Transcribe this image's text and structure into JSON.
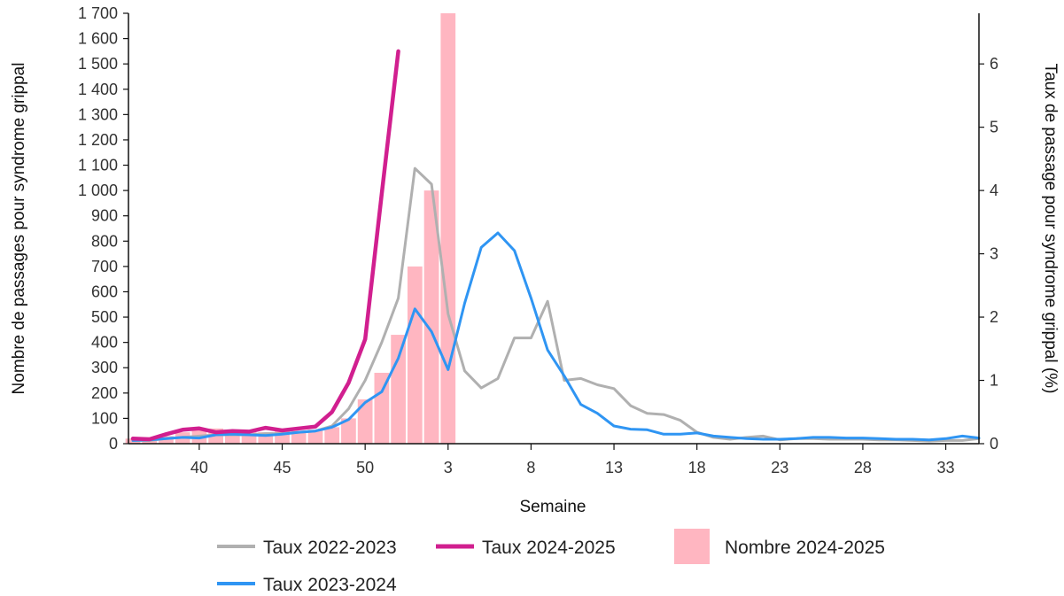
{
  "chart_data": {
    "type": "bar+line",
    "x": {
      "label": "Semaine",
      "weeks": [
        36,
        37,
        38,
        39,
        40,
        41,
        42,
        43,
        44,
        45,
        46,
        47,
        48,
        49,
        50,
        51,
        52,
        1,
        2,
        3,
        4,
        5,
        6,
        7,
        8,
        9,
        10,
        11,
        12,
        13,
        14,
        15,
        16,
        17,
        18,
        19,
        20,
        21,
        22,
        23,
        24,
        25,
        26,
        27,
        28,
        29,
        30,
        31,
        32,
        33,
        34,
        35
      ],
      "tick_labels": [
        "40",
        "45",
        "50",
        "3",
        "8",
        "13",
        "18",
        "23",
        "28",
        "33"
      ]
    },
    "y_left": {
      "label": "Nombre de passages pour syndrome grippal",
      "range": [
        0,
        1700
      ],
      "tick_labels": [
        "0",
        "100",
        "200",
        "300",
        "400",
        "500",
        "600",
        "700",
        "800",
        "900",
        "1 000",
        "1 100",
        "1 200",
        "1 300",
        "1 400",
        "1 500",
        "1 600",
        "1 700"
      ]
    },
    "y_right": {
      "label": "Taux de passage pour syndrome grippal (%)",
      "range": [
        0,
        6.8
      ],
      "tick_labels": [
        "0",
        "1",
        "2",
        "3",
        "4",
        "5",
        "6"
      ]
    },
    "bars": {
      "name": "Nombre 2024-2025",
      "axis": "left",
      "color": "#ffb6c1",
      "values": [
        20,
        25,
        30,
        45,
        55,
        60,
        45,
        50,
        45,
        55,
        50,
        55,
        65,
        100,
        175,
        280,
        430,
        700,
        1000,
        1700
      ]
    },
    "series": [
      {
        "name": "Taux 2022-2023",
        "axis": "right",
        "color": "#b0b0b0",
        "values": [
          0.05,
          0.05,
          0.08,
          0.1,
          0.12,
          0.14,
          0.14,
          0.14,
          0.16,
          0.16,
          0.18,
          0.2,
          0.28,
          0.55,
          1.0,
          1.6,
          2.3,
          4.35,
          4.1,
          2.05,
          1.15,
          0.88,
          1.03,
          1.67,
          1.67,
          2.25,
          1.0,
          1.03,
          0.93,
          0.87,
          0.6,
          0.48,
          0.46,
          0.37,
          0.18,
          0.1,
          0.07,
          0.1,
          0.12,
          0.06,
          0.08,
          0.08,
          0.07,
          0.07,
          0.07,
          0.06,
          0.06,
          0.05,
          0.04,
          0.05,
          0.05,
          0.08
        ]
      },
      {
        "name": "Taux 2023-2024",
        "axis": "right",
        "color": "#2f95f3",
        "values": [
          0.05,
          0.06,
          0.08,
          0.1,
          0.09,
          0.14,
          0.15,
          0.14,
          0.13,
          0.15,
          0.18,
          0.2,
          0.26,
          0.38,
          0.65,
          0.82,
          1.35,
          2.13,
          1.77,
          1.17,
          2.22,
          3.1,
          3.33,
          3.05,
          2.3,
          1.48,
          1.07,
          0.62,
          0.48,
          0.28,
          0.23,
          0.22,
          0.15,
          0.15,
          0.17,
          0.12,
          0.1,
          0.08,
          0.07,
          0.07,
          0.08,
          0.1,
          0.1,
          0.09,
          0.09,
          0.08,
          0.07,
          0.07,
          0.06,
          0.08,
          0.12,
          0.09
        ]
      },
      {
        "name": "Taux 2024-2025",
        "axis": "right",
        "color": "#d11f8f",
        "values": [
          0.08,
          0.07,
          0.15,
          0.22,
          0.24,
          0.18,
          0.2,
          0.19,
          0.25,
          0.21,
          0.24,
          0.27,
          0.5,
          0.96,
          1.65,
          3.95,
          6.2
        ]
      }
    ],
    "legend": {
      "placement": "bottom",
      "entries": [
        "Taux 2022-2023",
        "Taux 2024-2025",
        "Nombre 2024-2025",
        "Taux 2023-2024"
      ]
    }
  }
}
